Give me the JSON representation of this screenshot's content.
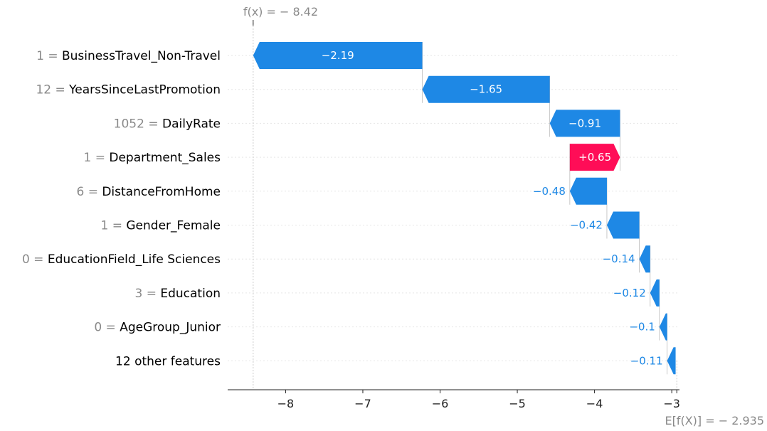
{
  "chart_data": {
    "type": "waterfall",
    "fx_label": "f(x) = − 8.42",
    "fx_value": -8.42,
    "ex_label": "E[f(X)] = − 2.935",
    "ex_value": -2.935,
    "features": [
      {
        "value": "1",
        "name": "BusinessTravel_Non-Travel",
        "contribution": -2.19,
        "label": "−2.19"
      },
      {
        "value": "12",
        "name": "YearsSinceLastPromotion",
        "contribution": -1.65,
        "label": "−1.65"
      },
      {
        "value": "1052",
        "name": "DailyRate",
        "contribution": -0.91,
        "label": "−0.91"
      },
      {
        "value": "1",
        "name": "Department_Sales",
        "contribution": 0.65,
        "label": "+0.65"
      },
      {
        "value": "6",
        "name": "DistanceFromHome",
        "contribution": -0.48,
        "label": "−0.48"
      },
      {
        "value": "1",
        "name": "Gender_Female",
        "contribution": -0.42,
        "label": "−0.42"
      },
      {
        "value": "0",
        "name": "EducationField_Life Sciences",
        "contribution": -0.14,
        "label": "−0.14"
      },
      {
        "value": "3",
        "name": "Education",
        "contribution": -0.12,
        "label": "−0.12"
      },
      {
        "value": "0",
        "name": "AgeGroup_Junior",
        "contribution": -0.1,
        "label": "−0.1"
      },
      {
        "value": "",
        "name": "12 other features",
        "contribution": -0.11,
        "label": "−0.11"
      }
    ],
    "x_ticks": [
      {
        "value": -8,
        "label": "−8"
      },
      {
        "value": -7,
        "label": "−7"
      },
      {
        "value": -6,
        "label": "−6"
      },
      {
        "value": -5,
        "label": "−5"
      },
      {
        "value": -4,
        "label": "−4"
      },
      {
        "value": -3,
        "label": "−3"
      }
    ],
    "xlim": [
      -8.75,
      -2.9
    ],
    "colors": {
      "negative": "#1e88e5",
      "positive": "#ff0d57",
      "grey_text": "#8a8a8a",
      "dark_text": "#000000",
      "grid": "#e6e6e6"
    }
  }
}
